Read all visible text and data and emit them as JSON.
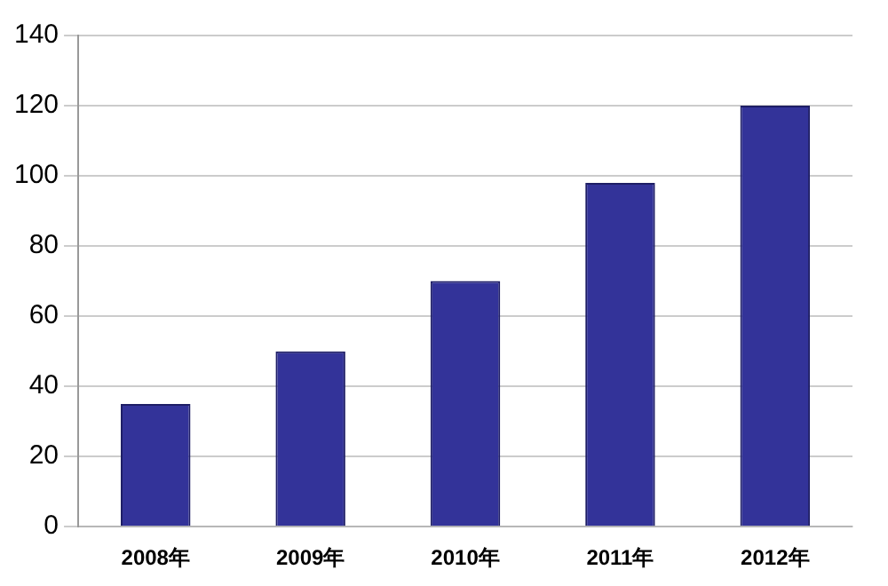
{
  "chart_data": {
    "type": "bar",
    "categories": [
      "2008年",
      "2009年",
      "2010年",
      "2011年",
      "2012年"
    ],
    "values": [
      35,
      50,
      70,
      98,
      120
    ],
    "color": "#333399",
    "ylim": [
      0,
      140
    ],
    "yticks": [
      0,
      20,
      40,
      60,
      80,
      100,
      120,
      140
    ],
    "grid": "y",
    "legend": false
  }
}
